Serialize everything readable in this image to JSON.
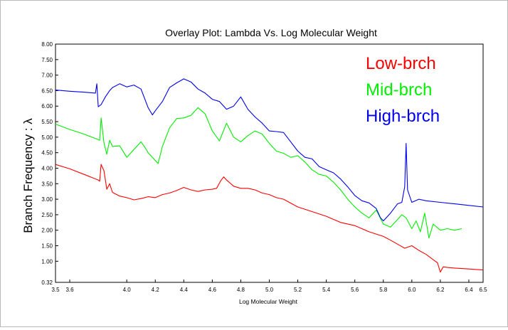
{
  "chart_data": {
    "type": "line",
    "title": "Overlay Plot: Lambda Vs. Log Molecular Weight",
    "xlabel": "Log Molecular Weight",
    "ylabel": "Branch Frequency : λ",
    "xlim": [
      3.5,
      6.5
    ],
    "ylim": [
      0.32,
      8.0
    ],
    "x_ticks": [
      {
        "value": 3.5,
        "label": "3.5"
      },
      {
        "value": 3.6,
        "label": "3.6"
      },
      {
        "value": 4.0,
        "label": "4.0"
      },
      {
        "value": 4.2,
        "label": "4.2"
      },
      {
        "value": 4.4,
        "label": "4.4"
      },
      {
        "value": 4.6,
        "label": "4.6"
      },
      {
        "value": 4.8,
        "label": "4.8"
      },
      {
        "value": 5.0,
        "label": "5.0"
      },
      {
        "value": 5.2,
        "label": "5.2"
      },
      {
        "value": 5.4,
        "label": "5.4"
      },
      {
        "value": 5.6,
        "label": "5.6"
      },
      {
        "value": 5.8,
        "label": "5.8"
      },
      {
        "value": 6.0,
        "label": "6.0"
      },
      {
        "value": 6.2,
        "label": "6.2"
      },
      {
        "value": 6.4,
        "label": "6.4"
      },
      {
        "value": 6.5,
        "label": "6.5"
      }
    ],
    "y_ticks": [
      {
        "value": 0.32,
        "label": "0.32"
      },
      {
        "value": 1.0,
        "label": "1.00"
      },
      {
        "value": 1.5,
        "label": "1.50"
      },
      {
        "value": 2.0,
        "label": "2.00"
      },
      {
        "value": 2.5,
        "label": "2.50"
      },
      {
        "value": 3.0,
        "label": "3.00"
      },
      {
        "value": 3.5,
        "label": "3.50"
      },
      {
        "value": 4.0,
        "label": "4.00"
      },
      {
        "value": 4.5,
        "label": "4.50"
      },
      {
        "value": 5.0,
        "label": "5.00"
      },
      {
        "value": 5.5,
        "label": "5.50"
      },
      {
        "value": 6.0,
        "label": "6.00"
      },
      {
        "value": 6.5,
        "label": "6.50"
      },
      {
        "value": 7.0,
        "label": "7.00"
      },
      {
        "value": 7.5,
        "label": "7.50"
      },
      {
        "value": 8.0,
        "label": "8.00"
      }
    ],
    "grid": false,
    "legend_position": "top-right",
    "series": [
      {
        "name": "Low-brch",
        "color": "#ff0000",
        "x": [
          3.5,
          3.6,
          3.7,
          3.8,
          3.81,
          3.82,
          3.84,
          3.86,
          3.88,
          3.9,
          3.95,
          4.0,
          4.05,
          4.1,
          4.15,
          4.2,
          4.25,
          4.3,
          4.35,
          4.4,
          4.45,
          4.5,
          4.55,
          4.6,
          4.63,
          4.66,
          4.68,
          4.7,
          4.75,
          4.8,
          4.85,
          4.9,
          4.95,
          5.0,
          5.05,
          5.1,
          5.2,
          5.3,
          5.4,
          5.5,
          5.6,
          5.7,
          5.8,
          5.85,
          5.9,
          5.95,
          6.0,
          6.05,
          6.1,
          6.15,
          6.18,
          6.2,
          6.22,
          6.25,
          6.3,
          6.4,
          6.5
        ],
        "y": [
          4.12,
          3.98,
          3.8,
          3.62,
          3.58,
          4.12,
          3.92,
          3.32,
          3.5,
          3.22,
          3.1,
          3.05,
          2.98,
          3.02,
          3.08,
          3.05,
          3.15,
          3.2,
          3.28,
          3.38,
          3.3,
          3.25,
          3.3,
          3.32,
          3.35,
          3.6,
          3.72,
          3.62,
          3.42,
          3.35,
          3.35,
          3.3,
          3.2,
          3.15,
          3.05,
          3.0,
          2.75,
          2.6,
          2.45,
          2.25,
          2.15,
          1.95,
          1.8,
          1.68,
          1.55,
          1.42,
          1.5,
          1.35,
          1.22,
          1.05,
          0.95,
          0.65,
          0.82,
          0.8,
          0.78,
          0.75,
          0.72
        ]
      },
      {
        "name": "Mid-brch",
        "color": "#00ee00",
        "x": [
          3.5,
          3.6,
          3.7,
          3.8,
          3.81,
          3.82,
          3.84,
          3.86,
          3.88,
          3.9,
          3.95,
          4.0,
          4.05,
          4.1,
          4.13,
          4.15,
          4.2,
          4.22,
          4.25,
          4.3,
          4.35,
          4.4,
          4.45,
          4.5,
          4.55,
          4.6,
          4.65,
          4.7,
          4.75,
          4.8,
          4.85,
          4.9,
          4.95,
          5.0,
          5.05,
          5.1,
          5.15,
          5.2,
          5.25,
          5.3,
          5.35,
          5.4,
          5.45,
          5.5,
          5.55,
          5.6,
          5.65,
          5.7,
          5.75,
          5.8,
          5.85,
          5.9,
          5.93,
          5.96,
          6.0,
          6.03,
          6.06,
          6.09,
          6.12,
          6.15,
          6.2,
          6.25,
          6.3,
          6.35
        ],
        "y": [
          5.42,
          5.25,
          5.1,
          4.92,
          4.9,
          5.62,
          4.82,
          4.45,
          4.9,
          4.7,
          4.72,
          4.35,
          4.6,
          4.85,
          4.65,
          4.5,
          4.25,
          4.15,
          4.7,
          5.3,
          5.6,
          5.62,
          5.7,
          5.95,
          5.75,
          5.2,
          4.88,
          5.45,
          5.0,
          4.85,
          5.05,
          5.2,
          5.1,
          4.8,
          4.55,
          4.48,
          4.35,
          4.4,
          4.2,
          3.95,
          3.8,
          3.75,
          3.55,
          3.3,
          3.0,
          2.75,
          2.55,
          2.4,
          2.65,
          2.2,
          2.1,
          2.35,
          2.5,
          2.4,
          2.05,
          2.3,
          1.95,
          2.55,
          1.75,
          2.2,
          2.0,
          2.05,
          2.0,
          2.05
        ]
      },
      {
        "name": "High-brch",
        "color": "#0000ee",
        "x": [
          3.5,
          3.6,
          3.7,
          3.78,
          3.79,
          3.8,
          3.82,
          3.85,
          3.88,
          3.9,
          3.95,
          4.0,
          4.05,
          4.1,
          4.15,
          4.18,
          4.2,
          4.25,
          4.3,
          4.35,
          4.4,
          4.45,
          4.5,
          4.55,
          4.6,
          4.65,
          4.7,
          4.75,
          4.8,
          4.85,
          4.9,
          4.95,
          5.0,
          5.05,
          5.1,
          5.15,
          5.2,
          5.25,
          5.3,
          5.35,
          5.4,
          5.45,
          5.5,
          5.55,
          5.6,
          5.65,
          5.7,
          5.75,
          5.78,
          5.8,
          5.85,
          5.9,
          5.93,
          5.95,
          5.96,
          5.97,
          6.0,
          6.05,
          6.1,
          6.2,
          6.3,
          6.4,
          6.5
        ],
        "y": [
          6.52,
          6.48,
          6.45,
          6.42,
          6.72,
          5.98,
          6.05,
          6.3,
          6.5,
          6.6,
          6.72,
          6.62,
          6.68,
          6.55,
          5.95,
          5.72,
          5.85,
          6.15,
          6.6,
          6.75,
          6.88,
          6.78,
          6.55,
          6.42,
          6.22,
          6.15,
          5.9,
          6.0,
          6.3,
          5.9,
          5.65,
          5.45,
          5.2,
          5.18,
          5.15,
          4.85,
          4.55,
          4.35,
          4.3,
          4.05,
          3.95,
          3.85,
          3.65,
          3.4,
          3.12,
          2.95,
          2.88,
          2.7,
          2.4,
          2.3,
          2.55,
          2.85,
          2.9,
          3.4,
          4.8,
          3.3,
          2.9,
          3.0,
          2.95,
          2.9,
          2.85,
          2.8,
          2.75
        ]
      }
    ]
  }
}
